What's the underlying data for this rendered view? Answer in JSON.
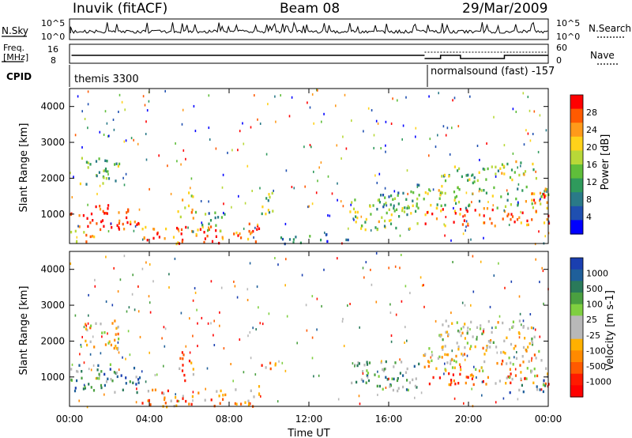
{
  "header": {
    "station": "Inuvik (fitACF)",
    "beam": "Beam 08",
    "date": "29/Mar/2009"
  },
  "left_labels": {
    "nsky": "N.Sky",
    "freq_line1": "Freq.",
    "freq_line2": "[MHz]",
    "cpid": "CPID"
  },
  "right_labels": {
    "nsearch": "N.Search",
    "nave": "Nave"
  },
  "strip_ticks": {
    "noise_left_top": "10^5",
    "noise_left_bottom": "10^0",
    "noise_right_top": "10^5",
    "noise_right_bottom": "10^0",
    "freq_left_top": "16",
    "freq_left_bottom": "8",
    "nave_right_top": "60",
    "nave_right_bottom": "0"
  },
  "cpid": {
    "mode1": "themis 3300",
    "mode2": "normalsound (fast) -157"
  },
  "chart_data": {
    "type": "heatmap",
    "xlabel": "Time UT",
    "x_ticks": [
      "00:00",
      "04:00",
      "08:00",
      "12:00",
      "16:00",
      "20:00",
      "00:00"
    ],
    "xlim_hours": [
      0,
      24
    ],
    "panels": [
      {
        "ylabel": "Slant Range [km]",
        "ylim": [
          180,
          4500
        ],
        "y_ticks": [
          1000,
          2000,
          3000,
          4000
        ],
        "colorbar_label": "Power [dB]",
        "colorbar_ticks": [
          "28",
          "24",
          "20",
          "16",
          "12",
          "8",
          "4"
        ],
        "colorbar_colors": [
          "#ff0000",
          "#ff5a00",
          "#ff9a1a",
          "#ffd21a",
          "#b8d838",
          "#5fbe3a",
          "#2f9a5c",
          "#2a7a88",
          "#1f4fb0",
          "#0000ff"
        ],
        "scatter_regions": [
          {
            "t0": 0.0,
            "t1": 3.5,
            "r0": 600,
            "r1": 1300,
            "level": 0.9
          },
          {
            "t0": 0.5,
            "t1": 2.5,
            "r0": 1800,
            "r1": 2600,
            "level": 0.4
          },
          {
            "t0": 0.0,
            "t1": 1.2,
            "r0": 200,
            "r1": 700,
            "level": 0.7
          },
          {
            "t0": 3.6,
            "t1": 7.8,
            "r0": 200,
            "r1": 700,
            "level": 0.85
          },
          {
            "t0": 5.4,
            "t1": 6.2,
            "r0": 800,
            "r1": 1800,
            "level": 0.7
          },
          {
            "t0": 6.0,
            "t1": 7.8,
            "r0": 500,
            "r1": 1100,
            "level": 0.4
          },
          {
            "t0": 8.2,
            "t1": 9.5,
            "r0": 200,
            "r1": 800,
            "level": 0.85
          },
          {
            "t0": 9.6,
            "t1": 10.3,
            "r0": 1000,
            "r1": 1700,
            "level": 0.5
          },
          {
            "t0": 10.5,
            "t1": 14.0,
            "r0": 200,
            "r1": 500,
            "level": 0.25
          },
          {
            "t0": 14.0,
            "t1": 17.5,
            "r0": 600,
            "r1": 1500,
            "level": 0.5
          },
          {
            "t0": 15.5,
            "t1": 17.7,
            "r0": 1200,
            "r1": 1900,
            "level": 0.35
          },
          {
            "t0": 17.7,
            "t1": 24.0,
            "r0": 700,
            "r1": 1200,
            "level": 0.85
          },
          {
            "t0": 17.7,
            "t1": 24.0,
            "r0": 1200,
            "r1": 1800,
            "level": 0.5
          },
          {
            "t0": 18.5,
            "t1": 21.5,
            "r0": 1800,
            "r1": 2400,
            "level": 0.45
          },
          {
            "t0": 21.5,
            "t1": 23.4,
            "r0": 1900,
            "r1": 2500,
            "level": 0.55
          },
          {
            "t0": 23.0,
            "t1": 24.0,
            "r0": 1300,
            "r1": 1800,
            "level": 0.85
          }
        ]
      },
      {
        "ylabel": "Slant Range [km]",
        "ylim": [
          180,
          4500
        ],
        "y_ticks": [
          1000,
          2000,
          3000,
          4000
        ],
        "colorbar_label": "Velocity [m s-1]",
        "colorbar_ticks": [
          "1000",
          "500",
          "100",
          "25",
          "-25",
          "-100",
          "-500",
          "-1000"
        ],
        "colorbar_colors": [
          "#1a3fb0",
          "#1f5f9a",
          "#2a7a5a",
          "#4aa040",
          "#7fcf40",
          "#b8b8b8",
          "#b8b8b8",
          "#ffb000",
          "#ff8a00",
          "#ff5a00",
          "#ff1a00",
          "#ff0000"
        ],
        "scatter_regions": [
          {
            "t0": 0.0,
            "t1": 3.5,
            "r0": 600,
            "r1": 1400,
            "level": 0.75
          },
          {
            "t0": 0.5,
            "t1": 2.5,
            "r0": 1800,
            "r1": 2600,
            "level": 0.45
          },
          {
            "t0": 3.6,
            "t1": 7.8,
            "r0": 200,
            "r1": 700,
            "level": 0.3
          },
          {
            "t0": 5.4,
            "t1": 6.2,
            "r0": 800,
            "r1": 1800,
            "level": 0.3
          },
          {
            "t0": 8.2,
            "t1": 9.5,
            "r0": 200,
            "r1": 800,
            "level": 0.3
          },
          {
            "t0": 9.6,
            "t1": 10.3,
            "r0": 1000,
            "r1": 1700,
            "level": 0.25
          },
          {
            "t0": 14.0,
            "t1": 17.5,
            "r0": 600,
            "r1": 1500,
            "level": 0.65
          },
          {
            "t0": 17.7,
            "t1": 24.0,
            "r0": 800,
            "r1": 1150,
            "level": 0.25
          },
          {
            "t0": 17.7,
            "t1": 24.0,
            "r0": 1150,
            "r1": 1900,
            "level": 0.45
          },
          {
            "t0": 18.5,
            "t1": 23.4,
            "r0": 1800,
            "r1": 2600,
            "level": 0.5
          },
          {
            "t0": 22.0,
            "t1": 24.0,
            "r0": 600,
            "r1": 1100,
            "level": 0.75
          }
        ]
      }
    ]
  }
}
